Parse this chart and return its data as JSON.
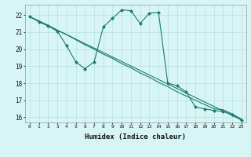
{
  "xlabel": "Humidex (Indice chaleur)",
  "bg_color": "#d8f5f5",
  "grid_color": "#b8dfdf",
  "line_color": "#1a7a6e",
  "xlim": [
    -0.5,
    23.5
  ],
  "ylim": [
    15.7,
    22.6
  ],
  "xticks": [
    0,
    1,
    2,
    3,
    4,
    5,
    6,
    7,
    8,
    9,
    10,
    11,
    12,
    13,
    14,
    15,
    16,
    17,
    18,
    19,
    20,
    21,
    22,
    23
  ],
  "yticks": [
    16,
    17,
    18,
    19,
    20,
    21,
    22
  ],
  "line1_x": [
    0,
    1,
    2,
    3,
    4,
    5,
    6,
    7,
    8,
    9,
    10,
    11,
    12,
    13,
    14,
    15,
    16,
    17,
    18,
    19,
    20,
    21,
    22,
    23
  ],
  "line1_y": [
    21.9,
    21.65,
    21.4,
    21.1,
    20.85,
    20.55,
    20.25,
    20.0,
    19.7,
    19.45,
    19.15,
    18.9,
    18.6,
    18.35,
    18.05,
    17.8,
    17.5,
    17.25,
    17.0,
    16.75,
    16.5,
    16.45,
    16.2,
    15.9
  ],
  "line2_x": [
    0,
    1,
    2,
    3,
    4,
    5,
    6,
    7,
    8,
    9,
    10,
    11,
    12,
    13,
    14,
    15,
    16,
    17,
    18,
    19,
    20,
    21,
    22,
    23
  ],
  "line2_y": [
    21.9,
    21.6,
    21.35,
    21.05,
    20.2,
    19.25,
    18.85,
    19.25,
    21.3,
    21.8,
    22.3,
    22.25,
    21.5,
    22.1,
    22.15,
    18.0,
    17.85,
    17.5,
    16.6,
    16.5,
    16.4,
    16.35,
    16.15,
    15.85
  ],
  "line3_x": [
    0,
    23
  ],
  "line3_y": [
    21.9,
    15.85
  ]
}
